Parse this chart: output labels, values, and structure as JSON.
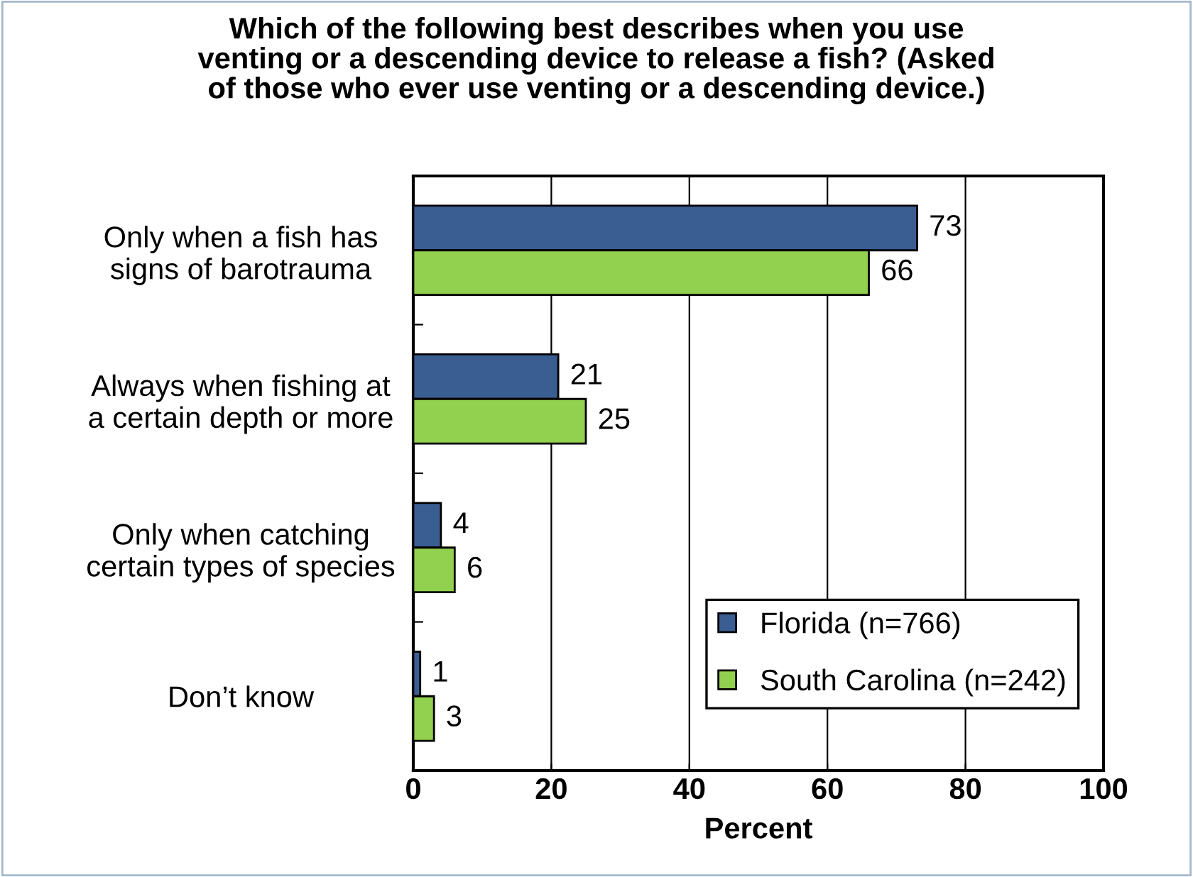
{
  "chart_data": {
    "type": "bar",
    "orientation": "horizontal",
    "title": "Which of the following best describes when you use\nventing or a descending device to release a fish? (Asked\nof those who ever use venting or a descending device.)",
    "xlabel": "Percent",
    "categories": [
      "Only when a fish has\nsigns of barotrauma",
      "Always when fishing at\na certain depth or more",
      "Only when catching\ncertain types of species",
      "Don’t know"
    ],
    "series": [
      {
        "name": "Florida (n=766)",
        "color": "#3b5e92",
        "values": [
          73,
          21,
          4,
          1
        ]
      },
      {
        "name": "South Carolina (n=242)",
        "color": "#92d050",
        "values": [
          66,
          25,
          6,
          3
        ]
      }
    ],
    "xlim": [
      0,
      100
    ],
    "xticks": [
      0,
      20,
      40,
      60,
      80,
      100
    ],
    "grid": "x",
    "legend": "bottom right",
    "data_labels": true
  }
}
